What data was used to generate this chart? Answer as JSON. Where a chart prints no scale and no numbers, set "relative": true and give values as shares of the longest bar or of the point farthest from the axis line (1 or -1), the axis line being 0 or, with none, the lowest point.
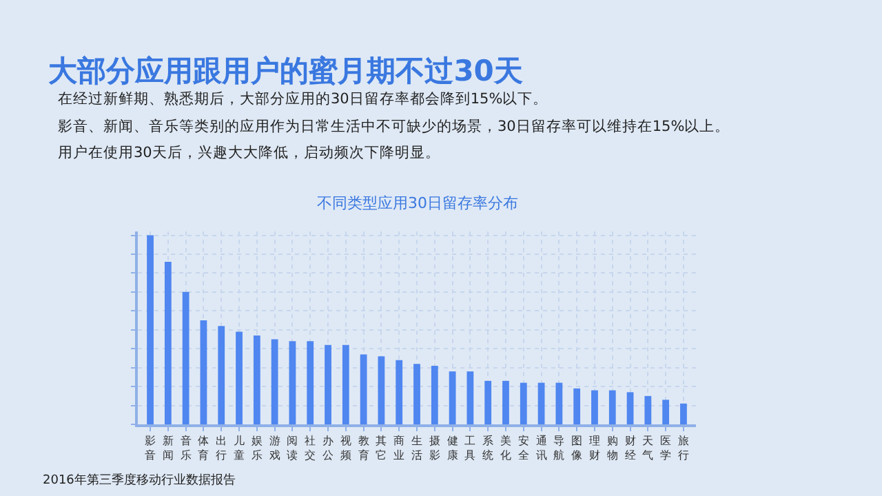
{
  "chart_data": {
    "type": "bar",
    "title": "大部分应用跟用户的蜜月期不过30天",
    "subtitle": "不同类型应用30日留存率分布",
    "annotations": [
      "在经过新鲜期、熟悉期后，大部分应用的30日留存率都会降到15%以下。",
      "影音、新闻、音乐等类别的应用作为日常生活中不可缺少的场景，30日留存率可以维持在15%以上。",
      "用户在使用30天后，兴趣大大降低，启动频次下降明显。",
      "2016年第三季度移动行业数据报告"
    ],
    "categories": [
      "影音",
      "新闻",
      "音乐",
      "体育",
      "出行",
      "儿童",
      "娱乐",
      "游戏",
      "阅读",
      "社交",
      "办公",
      "视频",
      "教育",
      "其它",
      "商业",
      "生活",
      "摄影",
      "健康",
      "工具",
      "系统",
      "美化",
      "安全",
      "通讯",
      "导航",
      "图像",
      "理财",
      "购物",
      "财经",
      "天气",
      "医学",
      "旅行"
    ],
    "values": [
      1.0,
      0.86,
      0.7,
      0.55,
      0.52,
      0.49,
      0.47,
      0.45,
      0.44,
      0.44,
      0.42,
      0.42,
      0.37,
      0.36,
      0.34,
      0.32,
      0.31,
      0.28,
      0.28,
      0.23,
      0.23,
      0.22,
      0.22,
      0.22,
      0.19,
      0.18,
      0.18,
      0.17,
      0.15,
      0.13,
      0.11
    ],
    "color": "#4f86f0",
    "relative": true,
    "grid": true
  }
}
